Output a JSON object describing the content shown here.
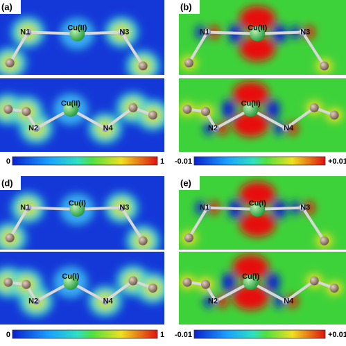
{
  "panels": [
    {
      "label": "(a)",
      "map": "elf",
      "top_atoms": [
        "N1",
        "Cu(II)",
        "N3"
      ],
      "bottom_atoms": [
        "N2",
        "Cu(II)",
        "N4"
      ],
      "scale_min": "0",
      "scale_max": "1"
    },
    {
      "label": "(b)",
      "map": "diff",
      "top_atoms": [
        "N1",
        "Cu(II)",
        "N3"
      ],
      "bottom_atoms": [
        "N2",
        "Cu(II)",
        "N4"
      ],
      "scale_min": "-0.01",
      "scale_max": "+0.01"
    },
    {
      "label": "(d)",
      "map": "elf",
      "top_atoms": [
        "N1",
        "Cu(I)",
        "N3"
      ],
      "bottom_atoms": [
        "N2",
        "Cu(I)",
        "N4"
      ],
      "scale_min": "0",
      "scale_max": "1"
    },
    {
      "label": "(e)",
      "map": "diff",
      "top_atoms": [
        "N1",
        "Cu(I)",
        "N3"
      ],
      "bottom_atoms": [
        "N2",
        "Cu(I)",
        "N4"
      ],
      "scale_min": "-0.01",
      "scale_max": "+0.01"
    }
  ]
}
